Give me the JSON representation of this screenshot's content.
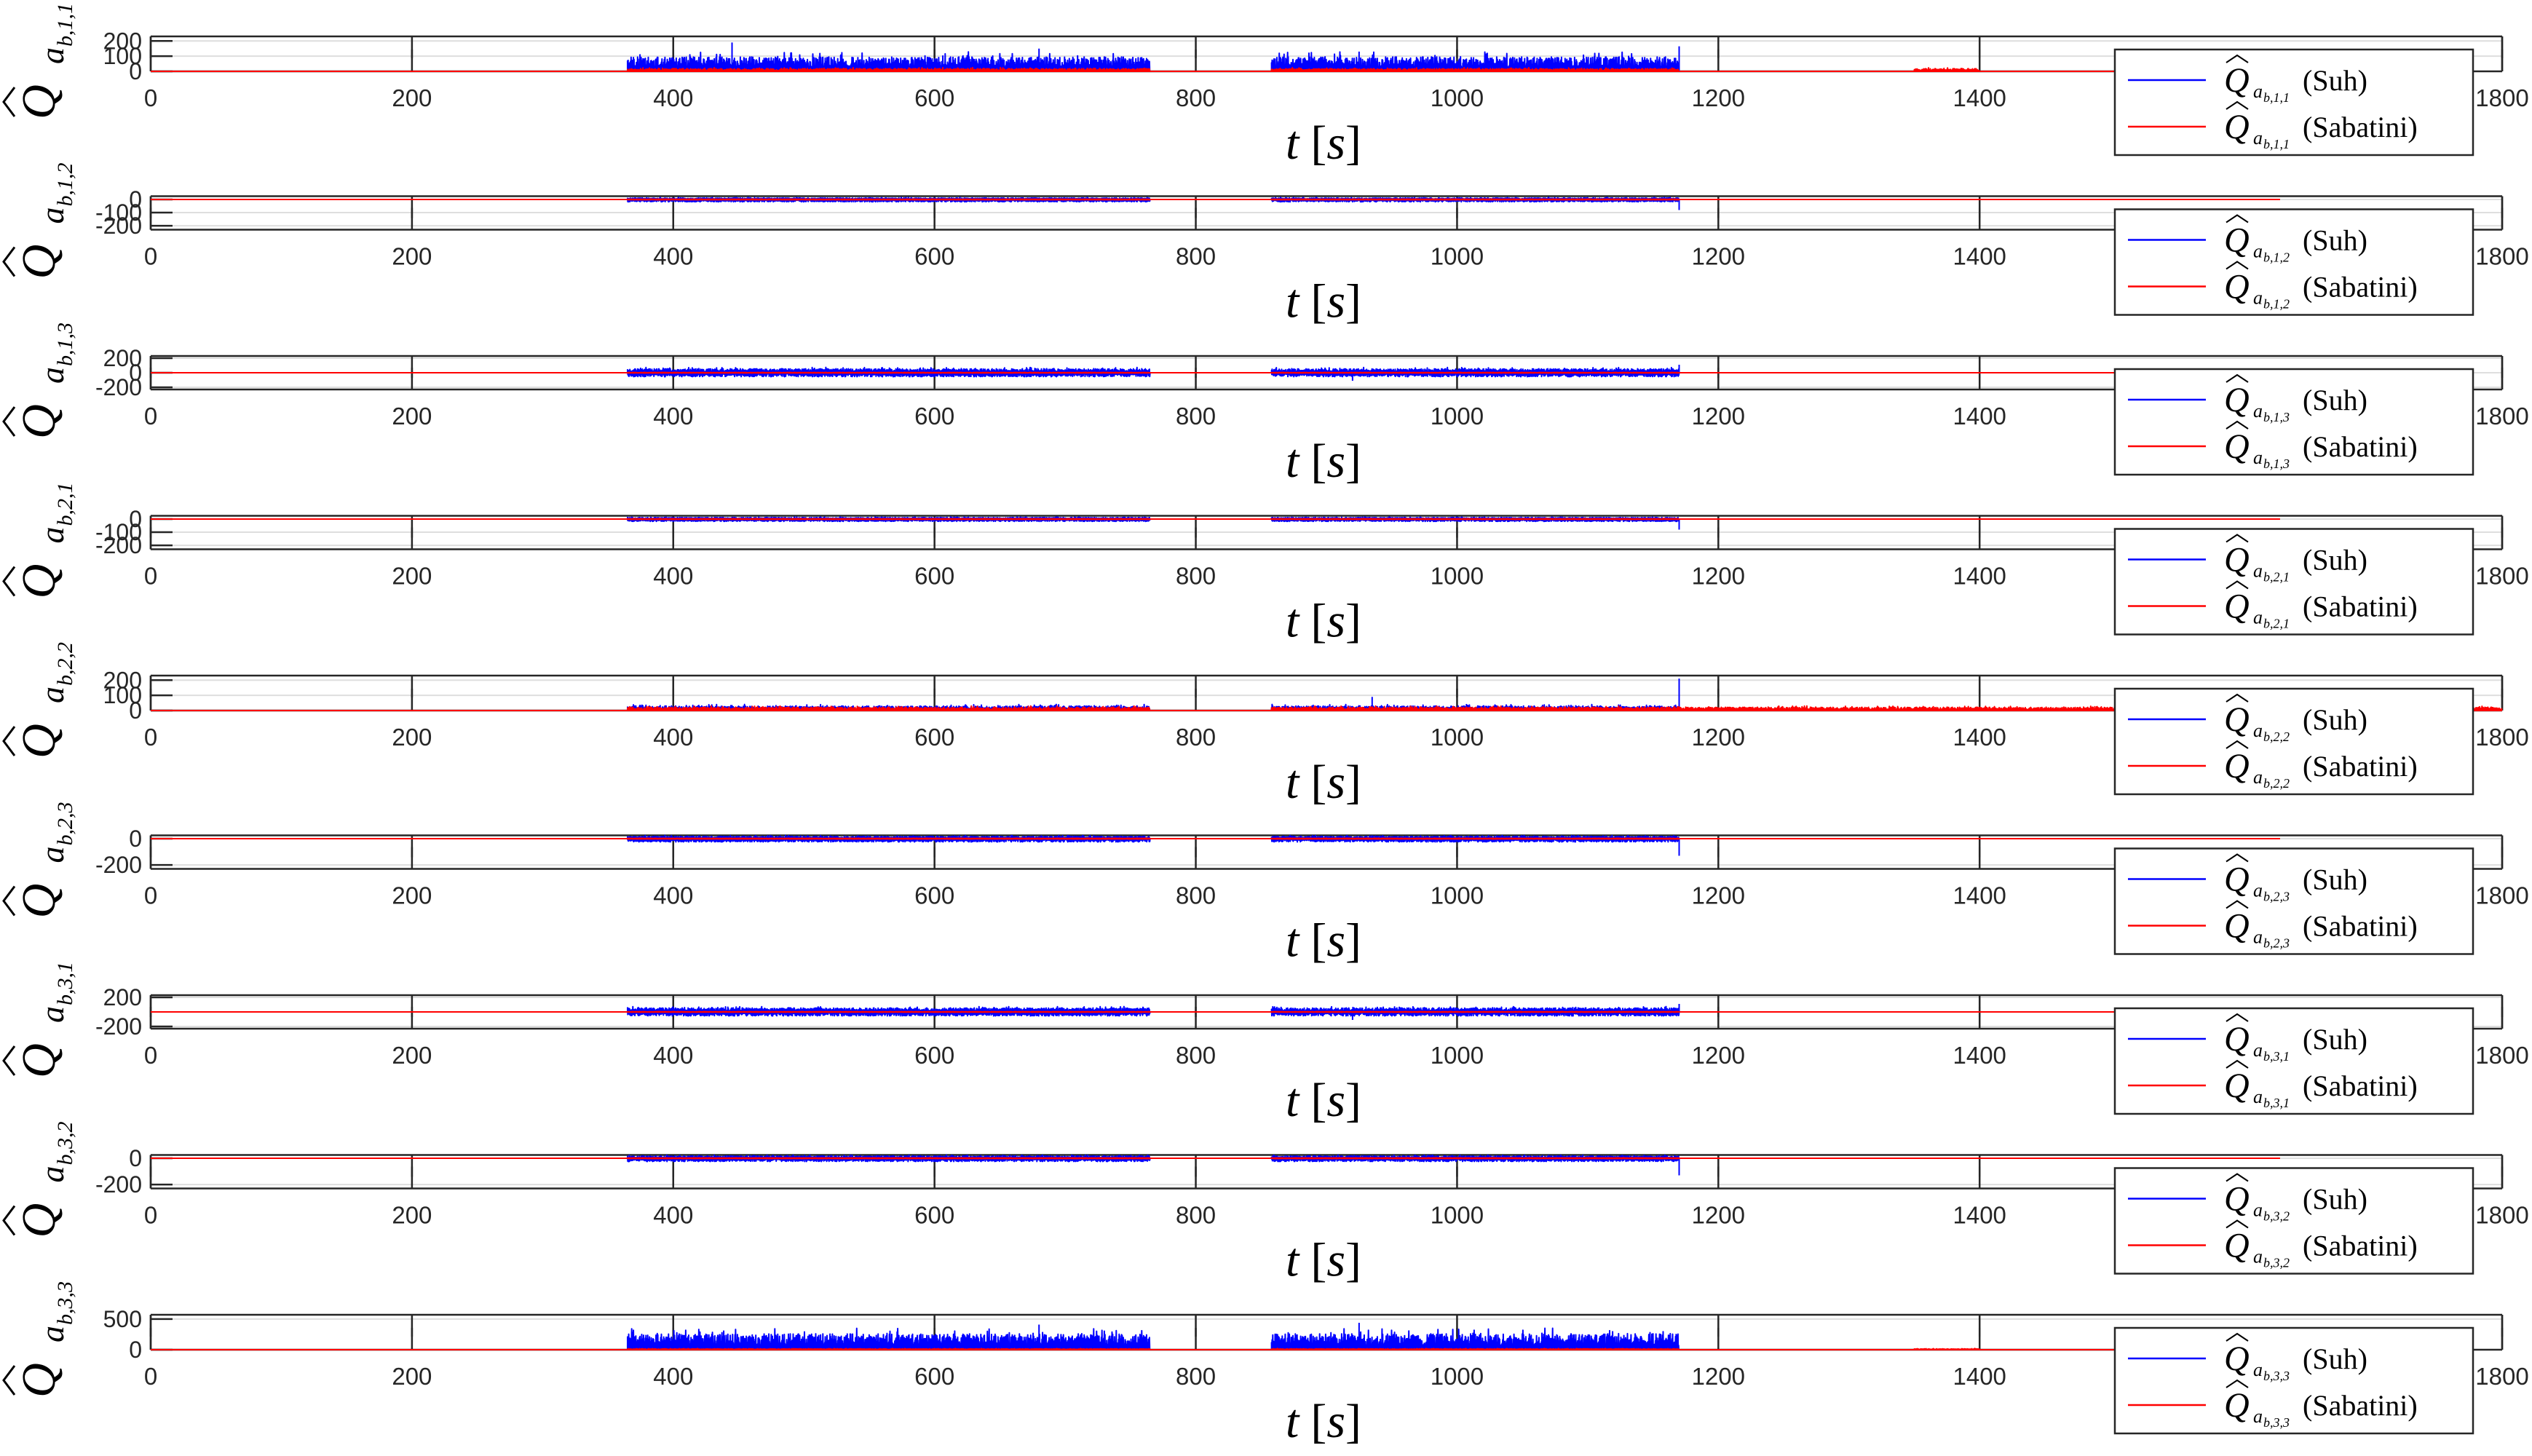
{
  "figure": {
    "colors": {
      "suh": "#0000ff",
      "sabatini": "#ff0000",
      "axis": "#262626",
      "grid": "#dedede"
    },
    "xlabel": {
      "t": "t",
      "unit": "s"
    },
    "xticks": [
      "0",
      "200",
      "400",
      "600",
      "800",
      "1000",
      "1200",
      "1400",
      "1800"
    ]
  },
  "chart_data": [
    {
      "type": "line",
      "ylabel": {
        "q": "Q",
        "a": "a",
        "sub": "b,1,1"
      },
      "xlim": [
        0,
        1800
      ],
      "ylim": [
        0,
        230
      ],
      "yticks": [
        "200",
        "100",
        "0"
      ],
      "ytick_values": [
        200,
        100,
        0
      ],
      "series": [
        {
          "name": "Suh",
          "legend": {
            "sub": "b,1,1",
            "label": "(Suh)"
          },
          "baseline": 0,
          "amp_pos": 95,
          "amp_neg": 0,
          "active": [
            [
              365,
              765
            ],
            [
              858,
              1170
            ]
          ],
          "peaks": [
            [
              445,
              190
            ],
            [
              680,
              150
            ],
            [
              925,
              130
            ],
            [
              1170,
              165
            ]
          ]
        },
        {
          "name": "Sabatini",
          "legend": {
            "sub": "b,1,1",
            "label": "(Sabatini)"
          },
          "baseline": 0,
          "amp_pos": 18,
          "amp_neg": 0,
          "active": [
            [
              365,
              765
            ],
            [
              858,
              1170
            ],
            [
              1350,
              1400
            ]
          ]
        }
      ]
    },
    {
      "type": "line",
      "ylabel": {
        "q": "Q",
        "a": "a",
        "sub": "b,1,2"
      },
      "xlim": [
        0,
        1800
      ],
      "ylim": [
        -230,
        25
      ],
      "yticks": [
        "0",
        "-100",
        "-200"
      ],
      "ytick_values": [
        0,
        -100,
        -200
      ],
      "series": [
        {
          "name": "Suh",
          "legend": {
            "sub": "b,1,2",
            "label": "(Suh)"
          },
          "baseline": 0,
          "amp_pos": 12,
          "amp_neg": 18,
          "active": [
            [
              365,
              765
            ],
            [
              858,
              1170
            ]
          ],
          "peaks": [
            [
              1170,
              -80
            ]
          ]
        },
        {
          "name": "Sabatini",
          "legend": {
            "sub": "b,1,2",
            "label": "(Sabatini)"
          },
          "baseline": 0,
          "amp_pos": 3,
          "amp_neg": 3,
          "active": [
            [
              365,
              765
            ],
            [
              858,
              1170
            ]
          ]
        }
      ]
    },
    {
      "type": "line",
      "ylabel": {
        "q": "Q",
        "a": "a",
        "sub": "b,1,3"
      },
      "xlim": [
        0,
        1800
      ],
      "ylim": [
        -230,
        230
      ],
      "yticks": [
        "200",
        "0",
        "-200"
      ],
      "ytick_values": [
        200,
        0,
        -200
      ],
      "series": [
        {
          "name": "Suh",
          "legend": {
            "sub": "b,1,3",
            "label": "(Suh)"
          },
          "baseline": 0,
          "amp_pos": 55,
          "amp_neg": 55,
          "active": [
            [
              365,
              765
            ],
            [
              858,
              1170
            ]
          ],
          "peaks": [
            [
              920,
              -110
            ],
            [
              1170,
              110
            ]
          ]
        },
        {
          "name": "Sabatini",
          "legend": {
            "sub": "b,1,3",
            "label": "(Sabatini)"
          },
          "baseline": 0,
          "amp_pos": 4,
          "amp_neg": 4,
          "active": [
            [
              365,
              765
            ],
            [
              858,
              1170
            ]
          ]
        }
      ]
    },
    {
      "type": "line",
      "ylabel": {
        "q": "Q",
        "a": "a",
        "sub": "b,2,1"
      },
      "xlim": [
        0,
        1800
      ],
      "ylim": [
        -230,
        25
      ],
      "yticks": [
        "0",
        "-100",
        "-200"
      ],
      "ytick_values": [
        0,
        -100,
        -200
      ],
      "series": [
        {
          "name": "Suh",
          "legend": {
            "sub": "b,2,1",
            "label": "(Suh)"
          },
          "baseline": 0,
          "amp_pos": 12,
          "amp_neg": 18,
          "active": [
            [
              365,
              765
            ],
            [
              858,
              1170
            ]
          ],
          "peaks": [
            [
              1170,
              -80
            ]
          ]
        },
        {
          "name": "Sabatini",
          "legend": {
            "sub": "b,2,1",
            "label": "(Sabatini)"
          },
          "baseline": 0,
          "amp_pos": 3,
          "amp_neg": 3,
          "active": [
            [
              365,
              765
            ],
            [
              858,
              1170
            ]
          ]
        }
      ]
    },
    {
      "type": "line",
      "ylabel": {
        "q": "Q",
        "a": "a",
        "sub": "b,2,2"
      },
      "xlim": [
        0,
        1800
      ],
      "ylim": [
        0,
        230
      ],
      "yticks": [
        "200",
        "100",
        "0"
      ],
      "ytick_values": [
        200,
        100,
        0
      ],
      "series": [
        {
          "name": "Suh",
          "legend": {
            "sub": "b,2,2",
            "label": "(Suh)"
          },
          "baseline": 0,
          "amp_pos": 30,
          "amp_neg": 0,
          "active": [
            [
              365,
              765
            ],
            [
              858,
              1170
            ]
          ],
          "peaks": [
            [
              935,
              90
            ],
            [
              1170,
              210
            ]
          ]
        },
        {
          "name": "Sabatini",
          "legend": {
            "sub": "b,2,2",
            "label": "(Sabatini)"
          },
          "baseline": 0,
          "amp_pos": 22,
          "amp_neg": 0,
          "active": [
            [
              365,
              765
            ],
            [
              858,
              1170
            ],
            [
              1170,
              1800
            ]
          ]
        }
      ]
    },
    {
      "type": "line",
      "ylabel": {
        "q": "Q",
        "a": "a",
        "sub": "b,2,3"
      },
      "xlim": [
        0,
        1800
      ],
      "ylim": [
        -230,
        25
      ],
      "yticks": [
        "0",
        "-200"
      ],
      "ytick_values": [
        0,
        -200
      ],
      "series": [
        {
          "name": "Suh",
          "legend": {
            "sub": "b,2,3",
            "label": "(Suh)"
          },
          "baseline": 0,
          "amp_pos": 18,
          "amp_neg": 25,
          "active": [
            [
              365,
              765
            ],
            [
              858,
              1170
            ]
          ],
          "peaks": [
            [
              1170,
              -130
            ]
          ]
        },
        {
          "name": "Sabatini",
          "legend": {
            "sub": "b,2,3",
            "label": "(Sabatini)"
          },
          "baseline": 0,
          "amp_pos": 3,
          "amp_neg": 3,
          "active": [
            [
              365,
              765
            ],
            [
              858,
              1170
            ]
          ]
        }
      ]
    },
    {
      "type": "line",
      "ylabel": {
        "q": "Q",
        "a": "a",
        "sub": "b,3,1"
      },
      "xlim": [
        0,
        1800
      ],
      "ylim": [
        -230,
        230
      ],
      "yticks": [
        "200",
        "-200"
      ],
      "ytick_values": [
        200,
        -200
      ],
      "series": [
        {
          "name": "Suh",
          "legend": {
            "sub": "b,3,1",
            "label": "(Suh)"
          },
          "baseline": 0,
          "amp_pos": 55,
          "amp_neg": 55,
          "active": [
            [
              365,
              765
            ],
            [
              858,
              1170
            ]
          ],
          "peaks": [
            [
              920,
              -110
            ],
            [
              1170,
              110
            ]
          ]
        },
        {
          "name": "Sabatini",
          "legend": {
            "sub": "b,3,1",
            "label": "(Sabatini)"
          },
          "baseline": 0,
          "amp_pos": 4,
          "amp_neg": 4,
          "active": [
            [
              365,
              765
            ],
            [
              858,
              1170
            ]
          ]
        }
      ]
    },
    {
      "type": "line",
      "ylabel": {
        "q": "Q",
        "a": "a",
        "sub": "b,3,2"
      },
      "xlim": [
        0,
        1800
      ],
      "ylim": [
        -230,
        25
      ],
      "yticks": [
        "0",
        "-200"
      ],
      "ytick_values": [
        0,
        -200
      ],
      "series": [
        {
          "name": "Suh",
          "legend": {
            "sub": "b,3,2",
            "label": "(Suh)"
          },
          "baseline": 0,
          "amp_pos": 18,
          "amp_neg": 25,
          "active": [
            [
              365,
              765
            ],
            [
              858,
              1170
            ]
          ],
          "peaks": [
            [
              1170,
              -130
            ]
          ]
        },
        {
          "name": "Sabatini",
          "legend": {
            "sub": "b,3,2",
            "label": "(Sabatini)"
          },
          "baseline": 0,
          "amp_pos": 3,
          "amp_neg": 3,
          "active": [
            [
              365,
              765
            ],
            [
              858,
              1170
            ]
          ]
        }
      ]
    },
    {
      "type": "line",
      "ylabel": {
        "q": "Q",
        "a": "a",
        "sub": "b,3,3"
      },
      "xlim": [
        0,
        1800
      ],
      "ylim": [
        0,
        570
      ],
      "yticks": [
        "500",
        "0"
      ],
      "ytick_values": [
        500,
        0
      ],
      "series": [
        {
          "name": "Suh",
          "legend": {
            "sub": "b,3,3",
            "label": "(Suh)"
          },
          "baseline": 0,
          "amp_pos": 260,
          "amp_neg": 0,
          "active": [
            [
              365,
              765
            ],
            [
              858,
              1170
            ]
          ],
          "peaks": [
            [
              680,
              410
            ],
            [
              925,
              440
            ]
          ]
        },
        {
          "name": "Sabatini",
          "legend": {
            "sub": "b,3,3",
            "label": "(Sabatini)"
          },
          "baseline": 0,
          "amp_pos": 15,
          "amp_neg": 0,
          "active": [
            [
              365,
              765
            ],
            [
              858,
              1170
            ],
            [
              1350,
              1400
            ]
          ]
        }
      ]
    }
  ]
}
